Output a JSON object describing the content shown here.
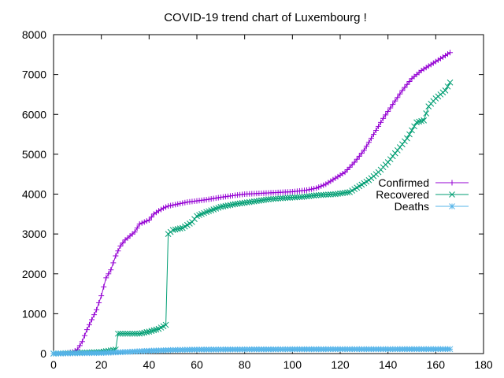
{
  "chart_data": {
    "type": "line",
    "title": "COVID-19 trend chart of Luxembourg !",
    "xlabel": "",
    "ylabel": "",
    "xlim": [
      0,
      180
    ],
    "ylim": [
      0,
      8000
    ],
    "xticks": [
      0,
      20,
      40,
      60,
      80,
      100,
      120,
      140,
      160,
      180
    ],
    "yticks": [
      0,
      1000,
      2000,
      3000,
      4000,
      5000,
      6000,
      7000,
      8000
    ],
    "grid": false,
    "legend_position": "right",
    "series": [
      {
        "name": "Confirmed",
        "color": "#9400d3",
        "marker": "plus",
        "points": [
          [
            0,
            0
          ],
          [
            4,
            2
          ],
          [
            8,
            40
          ],
          [
            10,
            100
          ],
          [
            12,
            300
          ],
          [
            14,
            600
          ],
          [
            16,
            850
          ],
          [
            18,
            1100
          ],
          [
            20,
            1450
          ],
          [
            22,
            1900
          ],
          [
            24,
            2100
          ],
          [
            26,
            2450
          ],
          [
            28,
            2700
          ],
          [
            30,
            2850
          ],
          [
            32,
            2950
          ],
          [
            34,
            3050
          ],
          [
            36,
            3250
          ],
          [
            38,
            3300
          ],
          [
            40,
            3350
          ],
          [
            42,
            3500
          ],
          [
            44,
            3580
          ],
          [
            46,
            3650
          ],
          [
            48,
            3700
          ],
          [
            52,
            3750
          ],
          [
            56,
            3800
          ],
          [
            60,
            3830
          ],
          [
            64,
            3860
          ],
          [
            70,
            3920
          ],
          [
            76,
            3970
          ],
          [
            80,
            4000
          ],
          [
            90,
            4030
          ],
          [
            100,
            4060
          ],
          [
            106,
            4100
          ],
          [
            110,
            4150
          ],
          [
            114,
            4250
          ],
          [
            118,
            4400
          ],
          [
            122,
            4550
          ],
          [
            126,
            4800
          ],
          [
            130,
            5100
          ],
          [
            134,
            5500
          ],
          [
            138,
            5900
          ],
          [
            142,
            6250
          ],
          [
            146,
            6600
          ],
          [
            150,
            6900
          ],
          [
            154,
            7100
          ],
          [
            158,
            7250
          ],
          [
            162,
            7400
          ],
          [
            166,
            7550
          ]
        ]
      },
      {
        "name": "Recovered",
        "color": "#009e73",
        "marker": "cross",
        "points": [
          [
            0,
            0
          ],
          [
            20,
            40
          ],
          [
            26,
            100
          ],
          [
            27,
            500
          ],
          [
            30,
            500
          ],
          [
            36,
            500
          ],
          [
            40,
            550
          ],
          [
            44,
            620
          ],
          [
            47,
            720
          ],
          [
            48,
            3000
          ],
          [
            50,
            3100
          ],
          [
            54,
            3150
          ],
          [
            58,
            3300
          ],
          [
            60,
            3450
          ],
          [
            64,
            3550
          ],
          [
            70,
            3680
          ],
          [
            76,
            3750
          ],
          [
            82,
            3800
          ],
          [
            90,
            3870
          ],
          [
            96,
            3900
          ],
          [
            104,
            3930
          ],
          [
            110,
            3970
          ],
          [
            118,
            4000
          ],
          [
            124,
            4050
          ],
          [
            128,
            4200
          ],
          [
            132,
            4350
          ],
          [
            136,
            4550
          ],
          [
            140,
            4800
          ],
          [
            144,
            5100
          ],
          [
            148,
            5400
          ],
          [
            152,
            5800
          ],
          [
            155,
            5850
          ],
          [
            157,
            6200
          ],
          [
            160,
            6400
          ],
          [
            162,
            6500
          ],
          [
            164,
            6600
          ],
          [
            166,
            6800
          ]
        ]
      },
      {
        "name": "Deaths",
        "color": "#56b4e9",
        "marker": "star",
        "points": [
          [
            0,
            0
          ],
          [
            20,
            15
          ],
          [
            30,
            40
          ],
          [
            40,
            70
          ],
          [
            50,
            90
          ],
          [
            60,
            100
          ],
          [
            80,
            105
          ],
          [
            100,
            108
          ],
          [
            120,
            110
          ],
          [
            140,
            110
          ],
          [
            160,
            112
          ],
          [
            166,
            112
          ]
        ]
      }
    ]
  }
}
